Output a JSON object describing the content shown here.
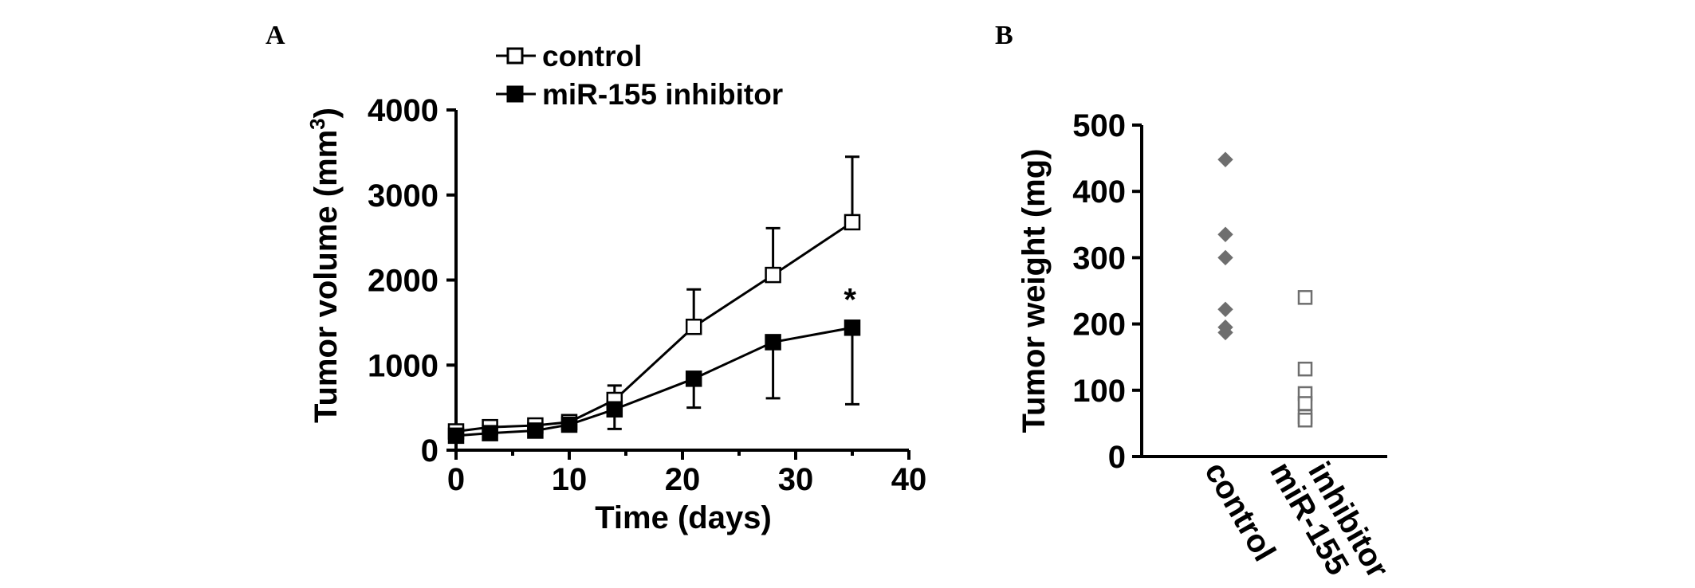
{
  "panels": {
    "a_letter": "A",
    "b_letter": "B"
  },
  "chart_data": [
    {
      "type": "line",
      "panel": "A",
      "xlabel": "Time (days)",
      "ylabel": "Tumor volume (mm",
      "ylabel_superscript": "3",
      "ylabel_close": ")",
      "xlim": [
        0,
        40
      ],
      "ylim": [
        0,
        4000
      ],
      "xticks": [
        0,
        10,
        20,
        30,
        40
      ],
      "yticks": [
        0,
        1000,
        2000,
        3000,
        4000
      ],
      "grid": false,
      "legend_position": "top",
      "x": [
        0,
        3,
        7,
        10,
        14,
        21,
        28,
        35
      ],
      "series": [
        {
          "name": "control",
          "marker": "open-square",
          "values": [
            220,
            270,
            290,
            330,
            590,
            1450,
            2060,
            2680
          ],
          "error_upper": [
            80,
            60,
            60,
            50,
            170,
            440,
            550,
            770
          ]
        },
        {
          "name": "miR-155 inhibitor",
          "marker": "filled-square",
          "values": [
            170,
            200,
            230,
            300,
            480,
            840,
            1270,
            1440
          ],
          "error_lower": [
            60,
            70,
            70,
            60,
            230,
            340,
            660,
            900
          ]
        }
      ],
      "annotations": [
        {
          "text": "*",
          "x": 34.8,
          "y": 1850
        }
      ]
    },
    {
      "type": "scatter",
      "panel": "B",
      "ylabel": "Tumor weight (mg)",
      "ylim": [
        0,
        500
      ],
      "yticks": [
        0,
        100,
        200,
        300,
        400,
        500
      ],
      "grid": false,
      "categories": [
        "control",
        "miR-155",
        "inhibitor"
      ],
      "series": [
        {
          "name": "control",
          "category_index": 0,
          "marker": "filled-diamond",
          "color": "#6e6e6e",
          "values": [
            448,
            335,
            300,
            222,
            195,
            187
          ]
        },
        {
          "name": "miR-155 inhibitor",
          "category_index": 1,
          "marker": "open-square",
          "color": "#6e6e6e",
          "values": [
            240,
            132,
            95,
            80,
            60,
            55
          ]
        }
      ]
    }
  ]
}
